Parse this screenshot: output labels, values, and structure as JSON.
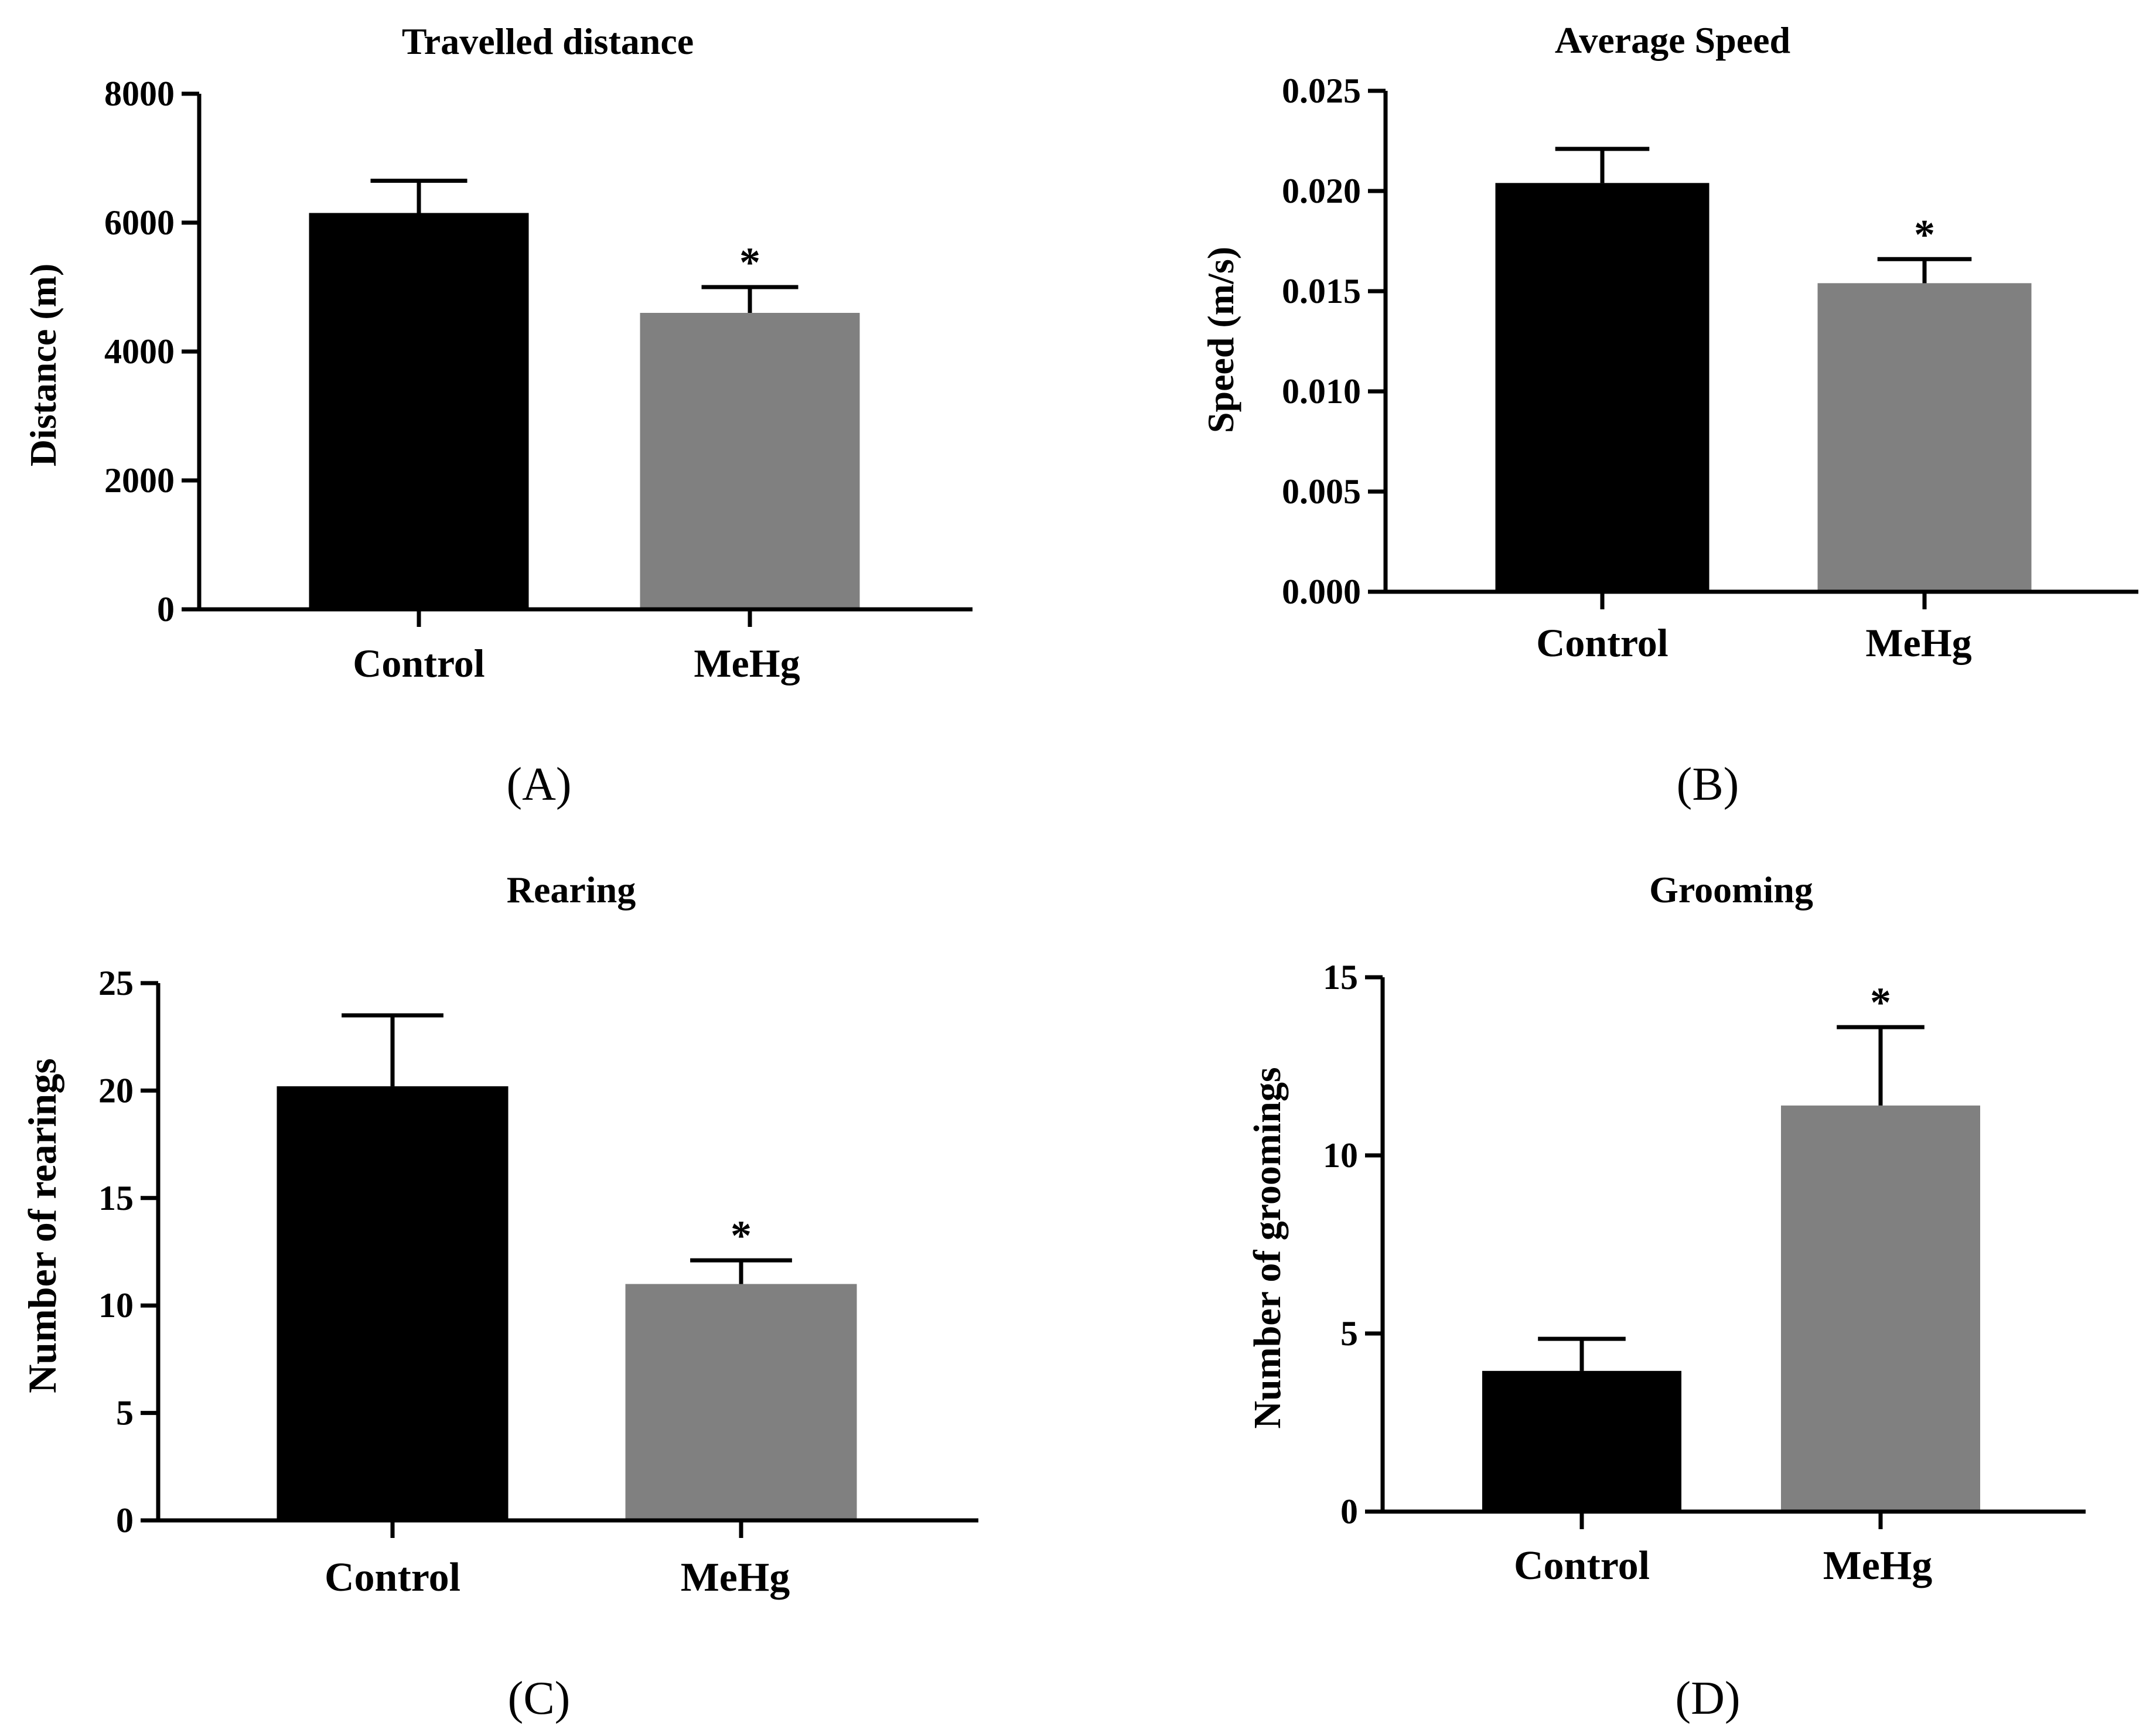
{
  "colors": {
    "control": "#000000",
    "mehg": "#808080",
    "axis": "#000000"
  },
  "chart_data": [
    {
      "type": "bar",
      "panel_label": "(A)",
      "title": "Travelled distance",
      "xlabel": "",
      "ylabel": "Distance  (m)",
      "categories": [
        "Control",
        "MeHg"
      ],
      "values": [
        6150,
        4600
      ],
      "errors": [
        500,
        400
      ],
      "significance": [
        "",
        "*"
      ],
      "ylim": [
        0,
        8000
      ],
      "yticks": [
        0,
        2000,
        4000,
        6000,
        8000
      ],
      "ytick_labels": [
        "0",
        "2000",
        "4000",
        "6000",
        "8000"
      ],
      "legend": "none"
    },
    {
      "type": "bar",
      "panel_label": "(B)",
      "title": "Average Speed",
      "xlabel": "",
      "ylabel": "Speed (m/s)",
      "categories": [
        "Control",
        "MeHg"
      ],
      "values": [
        0.0204,
        0.0154
      ],
      "errors": [
        0.0017,
        0.0012
      ],
      "significance": [
        "",
        "*"
      ],
      "ylim": [
        0,
        0.025
      ],
      "yticks": [
        0,
        0.005,
        0.01,
        0.015,
        0.02,
        0.025
      ],
      "ytick_labels": [
        "0.000",
        "0.005",
        "0.010",
        "0.015",
        "0.020",
        "0.025"
      ],
      "legend": "none"
    },
    {
      "type": "bar",
      "panel_label": "(C)",
      "title": "Rearing",
      "xlabel": "",
      "ylabel": "Number of rearings",
      "categories": [
        "Control",
        "MeHg"
      ],
      "values": [
        20.2,
        11
      ],
      "errors": [
        3.3,
        1.1
      ],
      "significance": [
        "",
        "*"
      ],
      "ylim": [
        0,
        25
      ],
      "yticks": [
        0,
        5,
        10,
        15,
        20,
        25
      ],
      "ytick_labels": [
        "0",
        "5",
        "10",
        "15",
        "20",
        "25"
      ],
      "legend": "none"
    },
    {
      "type": "bar",
      "panel_label": "(D)",
      "title": "Grooming",
      "xlabel": "",
      "ylabel": "Number of groomings",
      "categories": [
        "Control",
        "MeHg"
      ],
      "values": [
        3.95,
        11.4
      ],
      "errors": [
        0.9,
        2.2
      ],
      "significance": [
        "",
        "*"
      ],
      "ylim": [
        0,
        15
      ],
      "yticks": [
        0,
        5,
        10,
        15
      ],
      "ytick_labels": [
        "0",
        "5",
        "10",
        "15"
      ],
      "legend": "none"
    }
  ]
}
